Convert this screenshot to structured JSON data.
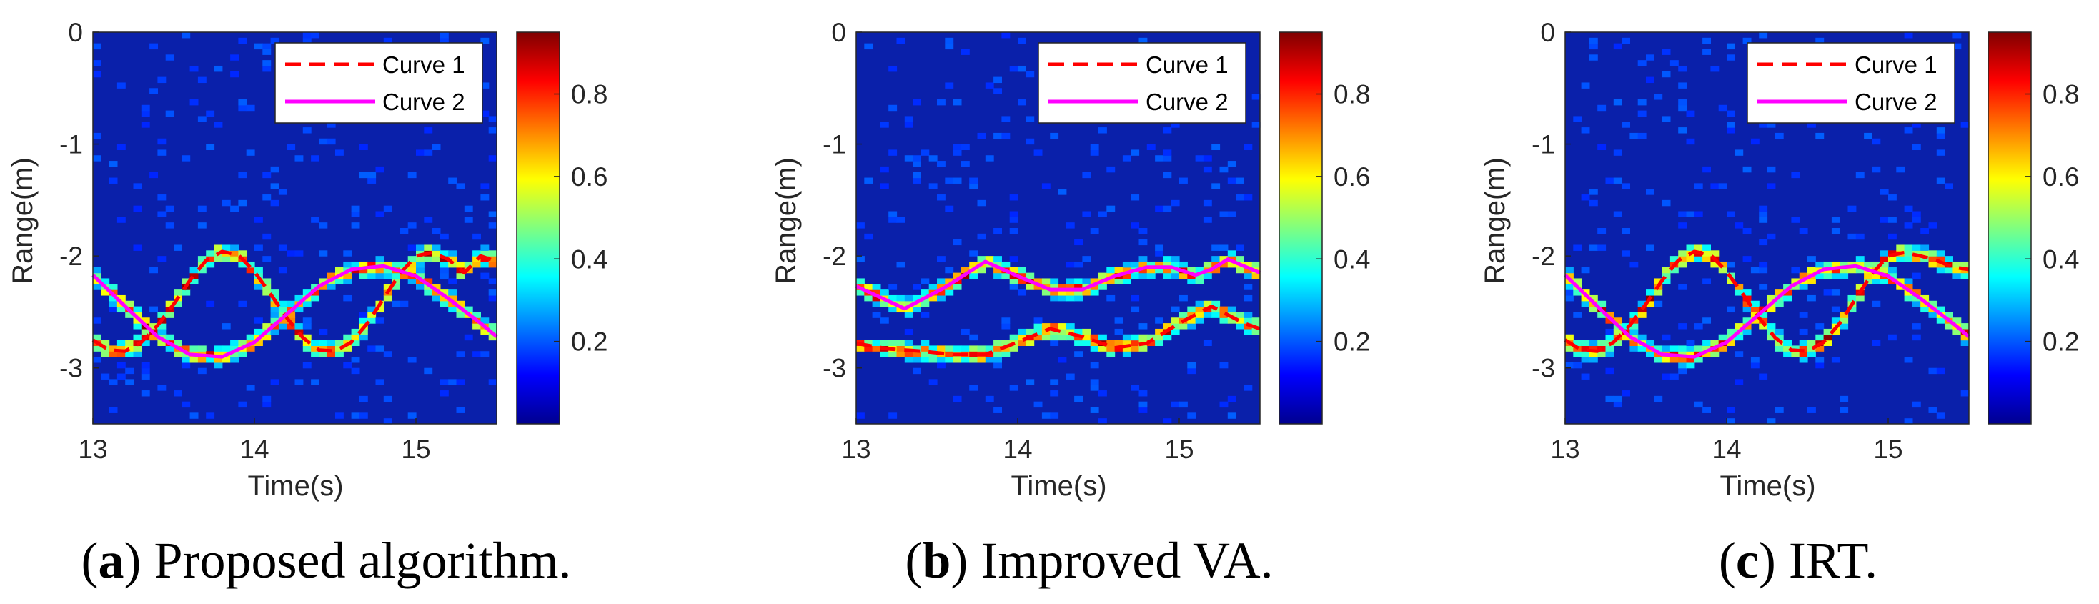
{
  "chart_data": [
    {
      "type": "heatmap",
      "panel_letter": "a",
      "caption": "Proposed algorithm.",
      "xlabel": "Time(s)",
      "ylabel": "Range(m)",
      "xlim": [
        13,
        15.5
      ],
      "ylim": [
        -3.5,
        0
      ],
      "xticks": [
        13,
        14,
        15
      ],
      "yticks": [
        0,
        -1,
        -2,
        -3
      ],
      "colorbar": {
        "range": [
          0,
          0.95
        ],
        "ticks": [
          0.2,
          0.4,
          0.6,
          0.8
        ],
        "colormap": "jet"
      },
      "legend": {
        "position": "top-right",
        "entries": [
          "Curve 1",
          "Curve 2"
        ]
      },
      "series": [
        {
          "name": "Curve 1",
          "style": "dashed",
          "color": "#ff0000",
          "x": [
            13.0,
            13.1,
            13.2,
            13.3,
            13.4,
            13.5,
            13.6,
            13.7,
            13.8,
            13.9,
            14.0,
            14.1,
            14.2,
            14.3,
            14.4,
            14.5,
            14.6,
            14.7,
            14.8,
            14.9,
            15.0,
            15.1,
            15.2,
            15.3,
            15.4,
            15.5
          ],
          "y": [
            -2.75,
            -2.84,
            -2.85,
            -2.77,
            -2.62,
            -2.43,
            -2.22,
            -2.04,
            -1.96,
            -1.99,
            -2.14,
            -2.34,
            -2.55,
            -2.73,
            -2.84,
            -2.85,
            -2.77,
            -2.6,
            -2.38,
            -2.16,
            -2.0,
            -1.97,
            -2.03,
            -2.15,
            -2.0,
            -2.05
          ]
        },
        {
          "name": "Curve 2",
          "style": "solid",
          "color": "#ff00ff",
          "x": [
            13.0,
            13.2,
            13.4,
            13.6,
            13.8,
            14.0,
            14.2,
            14.4,
            14.6,
            14.8,
            15.0,
            15.2,
            15.4,
            15.5
          ],
          "y": [
            -2.17,
            -2.45,
            -2.72,
            -2.88,
            -2.9,
            -2.77,
            -2.52,
            -2.27,
            -2.12,
            -2.09,
            -2.18,
            -2.38,
            -2.6,
            -2.72
          ]
        }
      ]
    },
    {
      "type": "heatmap",
      "panel_letter": "b",
      "caption": "Improved VA.",
      "xlabel": "Time(s)",
      "ylabel": "Range(m)",
      "xlim": [
        13,
        15.5
      ],
      "ylim": [
        -3.5,
        0
      ],
      "xticks": [
        13,
        14,
        15
      ],
      "yticks": [
        0,
        -1,
        -2,
        -3
      ],
      "colorbar": {
        "range": [
          0,
          0.95
        ],
        "ticks": [
          0.2,
          0.4,
          0.6,
          0.8
        ],
        "colormap": "jet"
      },
      "legend": {
        "position": "top-right",
        "entries": [
          "Curve 1",
          "Curve 2"
        ]
      },
      "series": [
        {
          "name": "Curve 1",
          "style": "dashed",
          "color": "#ff0000",
          "x": [
            13.0,
            13.2,
            13.4,
            13.6,
            13.8,
            14.0,
            14.2,
            14.4,
            14.6,
            14.8,
            15.0,
            15.2,
            15.4,
            15.5
          ],
          "y": [
            -2.78,
            -2.83,
            -2.85,
            -2.88,
            -2.88,
            -2.77,
            -2.65,
            -2.72,
            -2.82,
            -2.78,
            -2.6,
            -2.45,
            -2.6,
            -2.65
          ]
        },
        {
          "name": "Curve 2",
          "style": "solid",
          "color": "#ff00ff",
          "x": [
            13.0,
            13.3,
            13.55,
            13.8,
            14.0,
            14.2,
            14.4,
            14.6,
            14.8,
            14.95,
            15.1,
            15.2,
            15.3,
            15.5
          ],
          "y": [
            -2.27,
            -2.47,
            -2.28,
            -2.05,
            -2.18,
            -2.3,
            -2.3,
            -2.18,
            -2.1,
            -2.1,
            -2.17,
            -2.12,
            -2.03,
            -2.15
          ]
        }
      ]
    },
    {
      "type": "heatmap",
      "panel_letter": "c",
      "caption": "IRT.",
      "xlabel": "Time(s)",
      "ylabel": "Range(m)",
      "xlim": [
        13,
        15.5
      ],
      "ylim": [
        -3.5,
        0
      ],
      "xticks": [
        13,
        14,
        15
      ],
      "yticks": [
        0,
        -1,
        -2,
        -3
      ],
      "colorbar": {
        "range": [
          0,
          0.95
        ],
        "ticks": [
          0.2,
          0.4,
          0.6,
          0.8
        ],
        "colormap": "jet"
      },
      "legend": {
        "position": "top-right",
        "entries": [
          "Curve 1",
          "Curve 2"
        ]
      },
      "series": [
        {
          "name": "Curve 1",
          "style": "dashed",
          "color": "#ff0000",
          "x": [
            13.0,
            13.1,
            13.2,
            13.3,
            13.4,
            13.5,
            13.6,
            13.7,
            13.8,
            13.9,
            14.0,
            14.1,
            14.2,
            14.3,
            14.4,
            14.5,
            14.6,
            14.7,
            14.8,
            14.9,
            15.0,
            15.1,
            15.2,
            15.3,
            15.4,
            15.5
          ],
          "y": [
            -2.75,
            -2.84,
            -2.85,
            -2.77,
            -2.62,
            -2.43,
            -2.22,
            -2.04,
            -1.96,
            -1.99,
            -2.14,
            -2.34,
            -2.55,
            -2.73,
            -2.84,
            -2.85,
            -2.77,
            -2.6,
            -2.38,
            -2.16,
            -2.0,
            -1.97,
            -2.0,
            -2.04,
            -2.1,
            -2.12
          ]
        },
        {
          "name": "Curve 2",
          "style": "solid",
          "color": "#ff00ff",
          "x": [
            13.0,
            13.2,
            13.4,
            13.6,
            13.8,
            14.0,
            14.2,
            14.4,
            14.6,
            14.8,
            15.0,
            15.2,
            15.4,
            15.5
          ],
          "y": [
            -2.17,
            -2.45,
            -2.72,
            -2.88,
            -2.9,
            -2.77,
            -2.52,
            -2.27,
            -2.12,
            -2.09,
            -2.18,
            -2.38,
            -2.6,
            -2.72
          ]
        }
      ]
    }
  ]
}
